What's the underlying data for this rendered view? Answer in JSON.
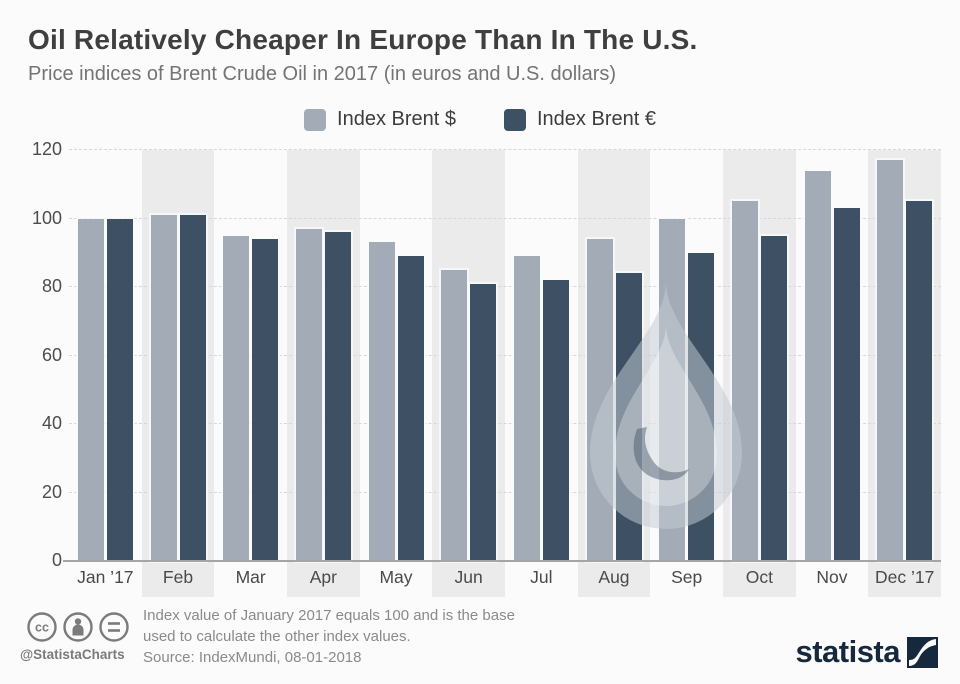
{
  "title": "Oil Relatively Cheaper In Europe Than In The U.S.",
  "subtitle": "Price indices of Brent Crude Oil in 2017 (in euros and U.S. dollars)",
  "colors": {
    "brent_usd": "#a3acb6",
    "brent_eur": "#3e5063",
    "band_shade": "#ebebeb",
    "brand_navy": "#15283e"
  },
  "chart_data": {
    "type": "bar",
    "categories": [
      "Jan ’17",
      "Feb",
      "Mar",
      "Apr",
      "May",
      "Jun",
      "Jul",
      "Aug",
      "Sep",
      "Oct",
      "Nov",
      "Dec ’17"
    ],
    "series": [
      {
        "name": "Index Brent $",
        "color": "#a3acb6",
        "values": [
          100,
          101,
          95,
          97,
          93,
          85,
          89,
          94,
          100,
          105,
          114,
          117
        ]
      },
      {
        "name": "Index Brent €",
        "color": "#3e5063",
        "values": [
          100,
          101,
          94,
          96,
          89,
          81,
          82,
          84,
          90,
          95,
          103,
          105
        ]
      }
    ],
    "ylim": [
      0,
      120
    ],
    "yticks": [
      0,
      20,
      40,
      60,
      80,
      100,
      120
    ],
    "grid": true,
    "legend_position": "top"
  },
  "footer": {
    "note_line1": "Index value of January 2017 equals 100 and is the base",
    "note_line2": "used to calculate the other index values.",
    "source": "Source: IndexMundi, 08-01-2018",
    "handle": "@StatistaCharts",
    "brand": "statista"
  }
}
